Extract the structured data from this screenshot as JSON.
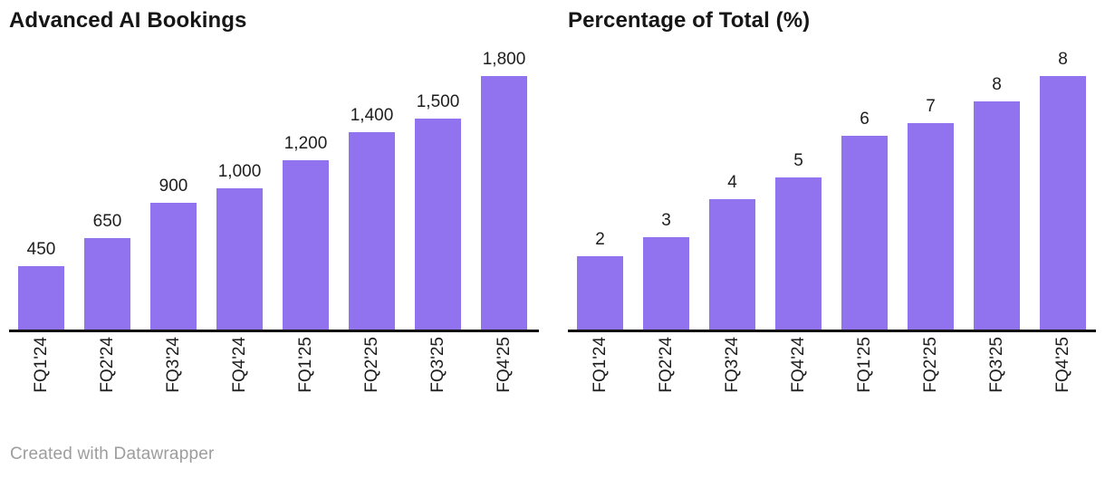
{
  "page": {
    "background": "#ffffff",
    "attribution": "Created with Datawrapper",
    "attribution_color": "#9d9d9d"
  },
  "accent_color": "#9173F0",
  "axis_color": "#121212",
  "text_color": "#1d1d1d",
  "chart_data": [
    {
      "type": "bar",
      "title": "Advanced AI Bookings",
      "categories": [
        "FQ1'24",
        "FQ2'24",
        "FQ3'24",
        "FQ4'24",
        "FQ1'25",
        "FQ2'25",
        "FQ3'25",
        "FQ4'25"
      ],
      "values": [
        450,
        650,
        900,
        1000,
        1200,
        1400,
        1500,
        1800
      ],
      "value_labels": [
        "450",
        "650",
        "900",
        "1,000",
        "1,200",
        "1,400",
        "1,500",
        "1,800"
      ],
      "ylim": [
        0,
        1800
      ],
      "bar_color": "#9173F0",
      "grid": false,
      "legend": false,
      "value_label_position": "above-bars",
      "tick_label_rotation": -90
    },
    {
      "type": "bar",
      "title": "Percentage of Total (%)",
      "categories": [
        "FQ1'24",
        "FQ2'24",
        "FQ3'24",
        "FQ4'24",
        "FQ1'25",
        "FQ2'25",
        "FQ3'25",
        "FQ4'25"
      ],
      "values": [
        2,
        3,
        4,
        5,
        6,
        7,
        8,
        8
      ],
      "value_labels": [
        "2",
        "3",
        "4",
        "5",
        "6",
        "7",
        "8",
        "8"
      ],
      "bar_heights_estimated": [
        2.3,
        2.9,
        4.1,
        4.8,
        6.1,
        6.5,
        7.2,
        8.0
      ],
      "ylim": [
        0,
        8
      ],
      "bar_color": "#9173F0",
      "grid": false,
      "legend": false,
      "value_label_position": "above-bars",
      "tick_label_rotation": -90
    }
  ]
}
